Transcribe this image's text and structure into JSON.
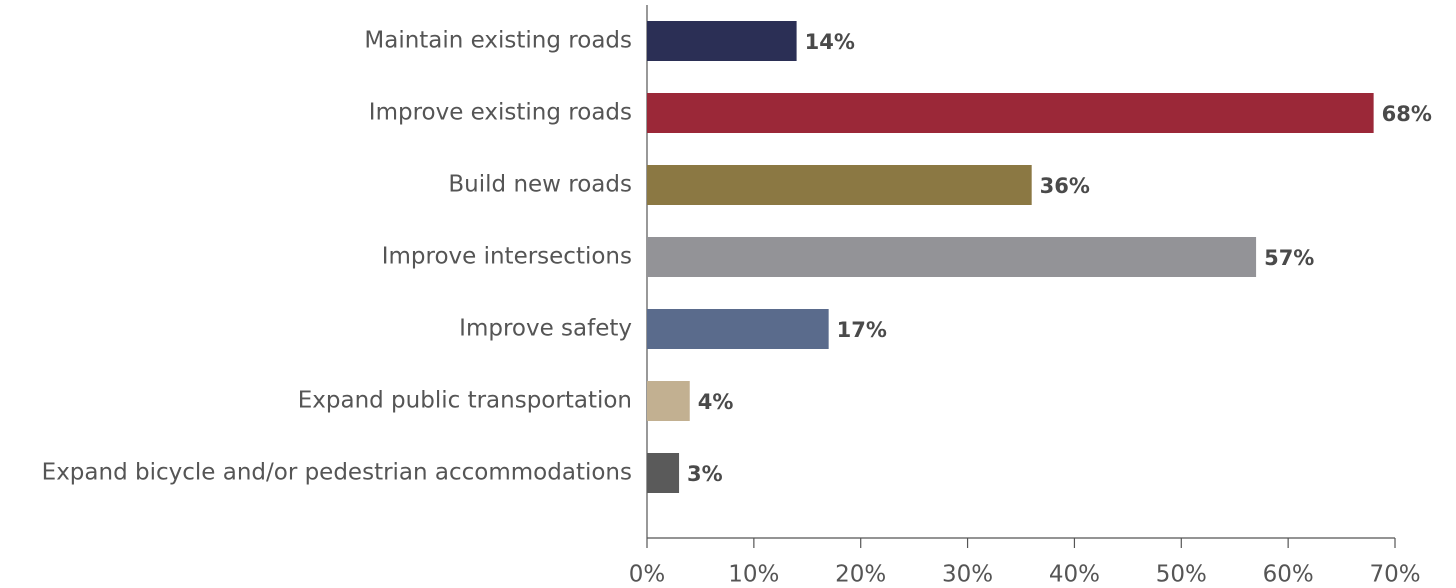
{
  "chart_data": {
    "type": "hbar",
    "categories": [
      "Maintain existing roads",
      "Improve existing roads",
      "Build new roads",
      "Improve intersections",
      "Improve safety",
      "Expand public transportation",
      "Expand bicycle and/or pedestrian accommodations"
    ],
    "values": [
      14,
      68,
      36,
      57,
      17,
      4,
      3
    ],
    "value_labels": [
      "14%",
      "68%",
      "36%",
      "57%",
      "17%",
      "4%",
      "3%"
    ],
    "colors": [
      "#2b2f55",
      "#9b2838",
      "#8b7843",
      "#939397",
      "#5a6b8c",
      "#c2b091",
      "#5a5a5a"
    ],
    "xlim": [
      0,
      70
    ],
    "xticks": [
      {
        "value": 0,
        "label": "0%"
      },
      {
        "value": 10,
        "label": "10%"
      },
      {
        "value": 20,
        "label": "20%"
      },
      {
        "value": 30,
        "label": "30%"
      },
      {
        "value": 40,
        "label": "40%"
      },
      {
        "value": 50,
        "label": "50%"
      },
      {
        "value": 60,
        "label": "60%"
      },
      {
        "value": 70,
        "label": "70%"
      }
    ]
  }
}
